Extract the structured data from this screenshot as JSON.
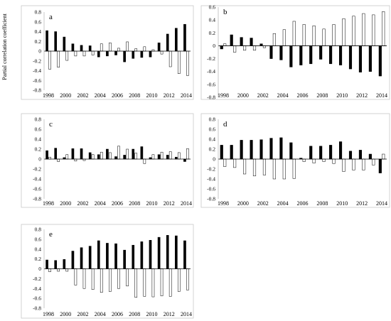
{
  "figure": {
    "ylabel": "Partial correlation coefficient"
  },
  "chart_data": [
    {
      "panel": "a",
      "type": "bar",
      "x": [
        1998,
        1999,
        2000,
        2001,
        2002,
        2003,
        2004,
        2005,
        2006,
        2007,
        2008,
        2009,
        2010,
        2011,
        2012,
        2013,
        2014
      ],
      "xticks": [
        "1998",
        "2000",
        "2002",
        "2004",
        "2006",
        "2008",
        "2010",
        "2012",
        "2014"
      ],
      "ylim": [
        -0.8,
        0.8
      ],
      "yticks": [
        -0.8,
        -0.6,
        -0.4,
        -0.2,
        0,
        0.2,
        0.4,
        0.6,
        0.8
      ],
      "series": [
        {
          "fill": "#000000",
          "values": [
            0.42,
            0.4,
            0.29,
            0.15,
            0.12,
            0.11,
            -0.12,
            -0.1,
            -0.08,
            -0.22,
            -0.15,
            -0.13,
            -0.12,
            0.17,
            0.35,
            0.47,
            0.55
          ]
        },
        {
          "fill": "#ffffff",
          "values": [
            -0.37,
            -0.33,
            -0.19,
            -0.1,
            -0.1,
            -0.08,
            0.15,
            0.17,
            0.06,
            0.19,
            0.05,
            0.09,
            0.03,
            -0.06,
            -0.32,
            -0.46,
            -0.5
          ]
        }
      ]
    },
    {
      "panel": "b",
      "type": "bar",
      "x": [
        1998,
        1999,
        2000,
        2001,
        2002,
        2003,
        2004,
        2005,
        2006,
        2007,
        2008,
        2009,
        2010,
        2011,
        2012,
        2013,
        2014
      ],
      "xticks": [
        "1998",
        "2000",
        "2002",
        "2004",
        "2006",
        "2008",
        "2010",
        "2012",
        "2014"
      ],
      "ylim": [
        -0.8,
        0.6
      ],
      "yticks": [
        -0.8,
        -0.6,
        -0.4,
        -0.2,
        0,
        0.2,
        0.4,
        0.6
      ],
      "series": [
        {
          "fill": "#000000",
          "values": [
            -0.05,
            0.17,
            0.13,
            0.12,
            0.03,
            -0.2,
            -0.22,
            -0.33,
            -0.3,
            -0.28,
            -0.21,
            -0.28,
            -0.3,
            -0.36,
            -0.41,
            -0.4,
            -0.47
          ]
        },
        {
          "fill": "#ffffff",
          "values": [
            0.03,
            -0.1,
            -0.07,
            -0.07,
            -0.03,
            0.19,
            0.25,
            0.38,
            0.33,
            0.31,
            0.26,
            0.33,
            0.42,
            0.46,
            0.5,
            0.48,
            0.53
          ]
        }
      ]
    },
    {
      "panel": "c",
      "type": "bar",
      "x": [
        1998,
        1999,
        2000,
        2001,
        2002,
        2003,
        2004,
        2005,
        2006,
        2007,
        2008,
        2009,
        2010,
        2011,
        2012,
        2013,
        2014
      ],
      "xticks": [
        "1998",
        "2000",
        "2002",
        "2004",
        "2006",
        "2008",
        "2010",
        "2012",
        "2014"
      ],
      "ylim": [
        -0.8,
        0.8
      ],
      "yticks": [
        -0.8,
        -0.6,
        -0.4,
        -0.2,
        0,
        0.2,
        0.4,
        0.6,
        0.8
      ],
      "series": [
        {
          "fill": "#000000",
          "values": [
            0.17,
            0.22,
            0.03,
            0.21,
            0.21,
            0.13,
            0.09,
            0.2,
            0.05,
            0.08,
            0.2,
            0.25,
            0.03,
            0.09,
            0.08,
            0.04,
            -0.05
          ]
        },
        {
          "fill": "#ffffff",
          "values": [
            0.04,
            -0.05,
            0.09,
            -0.04,
            -0.03,
            0.09,
            0.14,
            0.13,
            0.26,
            0.2,
            0.12,
            -0.09,
            0.09,
            0.14,
            0.15,
            0.13,
            0.21
          ]
        }
      ]
    },
    {
      "panel": "d",
      "type": "bar",
      "x": [
        1998,
        1999,
        2000,
        2001,
        2002,
        2003,
        2004,
        2005,
        2006,
        2007,
        2008,
        2009,
        2010,
        2011,
        2012,
        2013,
        2014
      ],
      "xticks": [
        "1998",
        "2000",
        "2002",
        "2004",
        "2006",
        "2008",
        "2010",
        "2012",
        "2014"
      ],
      "ylim": [
        -0.8,
        0.8
      ],
      "yticks": [
        -0.8,
        -0.6,
        -0.4,
        -0.2,
        0,
        0.2,
        0.4,
        0.6,
        0.8
      ],
      "series": [
        {
          "fill": "#000000",
          "values": [
            0.28,
            0.28,
            0.38,
            0.38,
            0.39,
            0.42,
            0.43,
            0.33,
            0.02,
            0.26,
            0.26,
            0.28,
            0.35,
            0.16,
            0.18,
            0.1,
            -0.28
          ]
        },
        {
          "fill": "#ffffff",
          "values": [
            -0.15,
            -0.17,
            -0.3,
            -0.34,
            -0.32,
            -0.4,
            -0.4,
            -0.39,
            -0.05,
            -0.08,
            -0.05,
            -0.09,
            -0.25,
            -0.22,
            -0.22,
            -0.12,
            0.1
          ]
        }
      ]
    },
    {
      "panel": "e",
      "type": "bar",
      "x": [
        1998,
        1999,
        2000,
        2001,
        2002,
        2003,
        2004,
        2005,
        2006,
        2007,
        2008,
        2009,
        2010,
        2011,
        2012,
        2013,
        2014
      ],
      "xticks": [
        "1998",
        "2000",
        "2002",
        "2004",
        "2006",
        "2008",
        "2010",
        "2012",
        "2014"
      ],
      "ylim": [
        -0.8,
        0.8
      ],
      "yticks": [
        -0.8,
        -0.6,
        -0.4,
        -0.2,
        0,
        0.2,
        0.4,
        0.6,
        0.8
      ],
      "series": [
        {
          "fill": "#000000",
          "values": [
            0.18,
            0.17,
            0.19,
            0.36,
            0.43,
            0.46,
            0.57,
            0.52,
            0.51,
            0.38,
            0.48,
            0.55,
            0.58,
            0.64,
            0.68,
            0.67,
            0.57
          ]
        },
        {
          "fill": "#ffffff",
          "values": [
            -0.06,
            -0.05,
            -0.05,
            -0.33,
            -0.4,
            -0.42,
            -0.48,
            -0.46,
            -0.4,
            -0.35,
            -0.58,
            -0.56,
            -0.57,
            -0.55,
            -0.56,
            -0.46,
            -0.43
          ]
        }
      ]
    }
  ]
}
